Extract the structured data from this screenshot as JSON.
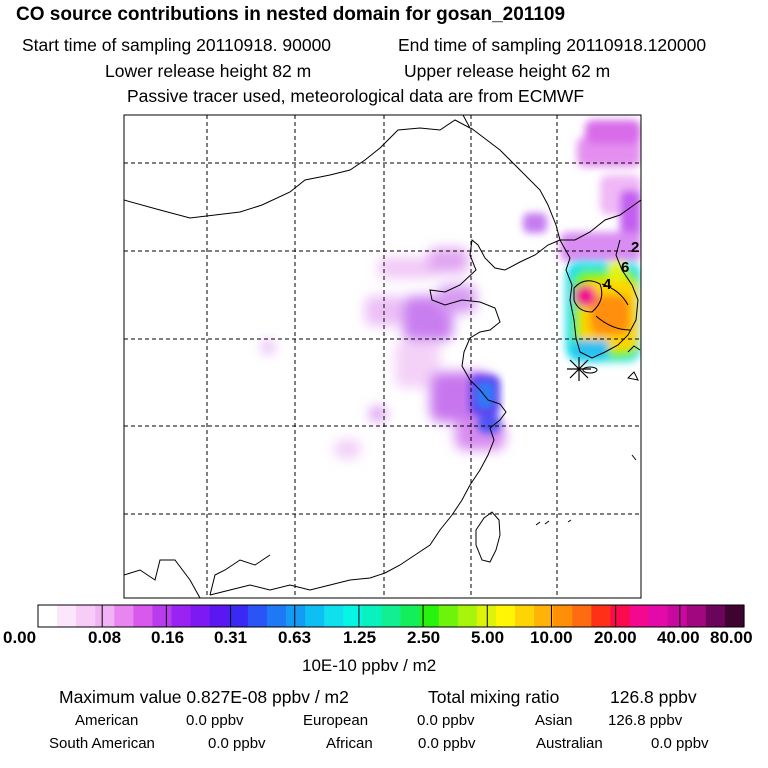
{
  "header": {
    "title": "CO  source contributions in nested domain for gosan_201109",
    "start_label": "Start time of sampling 20110918. 90000",
    "end_label": "End time of sampling 20110918.120000",
    "lower_height": "Lower release height   82 m",
    "upper_height": "Upper release height   62 m",
    "tracer_note": "Passive tracer used, meteorological data are from ECMWF"
  },
  "map": {
    "station_marker": "receptor-star-icon",
    "contour_labels": [
      "4",
      "6",
      "2"
    ]
  },
  "colorbar": {
    "colors": [
      "#ffffff",
      "#fbe6fb",
      "#f7cdf8",
      "#f2b3f5",
      "#e985f0",
      "#d959ec",
      "#b83bed",
      "#9a22f2",
      "#7d1af3",
      "#5b17f2",
      "#3a28f5",
      "#2b54f7",
      "#1e79f5",
      "#129cf5",
      "#0dbff3",
      "#10e0ee",
      "#06f5e5",
      "#07f2bd",
      "#12ef93",
      "#13ef5b",
      "#28f20f",
      "#6cf40b",
      "#a6f50a",
      "#def308",
      "#fff505",
      "#ffd405",
      "#ffb208",
      "#ff8f08",
      "#ff6b10",
      "#ff3018",
      "#fc0a4e",
      "#f4088f",
      "#e40aa9",
      "#c8089e",
      "#a1077f",
      "#6b055c",
      "#3e0330"
    ],
    "tick_labels": [
      "0.00",
      "0.08",
      "0.16",
      "0.31",
      "0.63",
      "1.25",
      "2.50",
      "5.00",
      "10.00",
      "20.00",
      "40.00",
      "80.00"
    ],
    "unit": "10E-10 ppbv / m2"
  },
  "stats": {
    "max_label": "Maximum value  0.827E-08 ppbv / m2",
    "total_label": "Total mixing ratio",
    "total_value": "126.8 ppbv",
    "regions": [
      {
        "name": "American",
        "value": "0.0 ppbv"
      },
      {
        "name": "European",
        "value": "0.0 ppbv"
      },
      {
        "name": "Asian",
        "value": "126.8 ppbv"
      },
      {
        "name": "South American",
        "value": "0.0 ppbv"
      },
      {
        "name": "African",
        "value": "0.0 ppbv"
      },
      {
        "name": "Australian",
        "value": "0.0 ppbv"
      }
    ]
  }
}
